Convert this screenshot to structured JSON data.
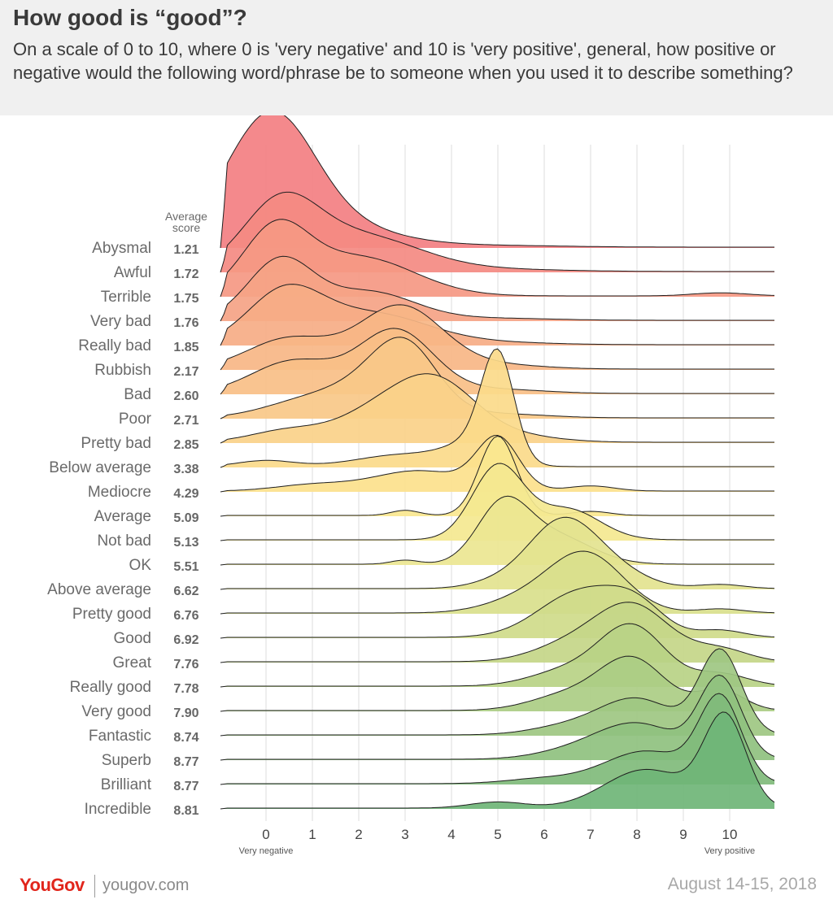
{
  "header": {
    "title": "How good is “good”?",
    "subtitle": "On a scale of 0 to 10, where 0 is 'very negative' and 10 is 'very positive', general, how positive or negative would the following word/phrase be to someone when you used it to describe something?"
  },
  "chart_data": {
    "type": "ridgeline",
    "title": "How good is “good”?",
    "avg_header_line1": "Average",
    "avg_header_line2": "score",
    "x_ticks": [
      "0",
      "1",
      "2",
      "3",
      "4",
      "5",
      "6",
      "7",
      "8",
      "9",
      "10"
    ],
    "x_min_label": "Very negative",
    "x_max_label": "Very positive",
    "xlim": [
      -1,
      11
    ],
    "rows": [
      {
        "label": "Abysmal",
        "avg": "1.21",
        "color": "#f37f82",
        "peaks": [
          [
            0.1,
            0.9,
            1.0
          ],
          [
            0.5,
            1.6,
            0.35
          ],
          [
            5,
            1.5,
            0.015
          ]
        ]
      },
      {
        "label": "Awful",
        "avg": "1.72",
        "color": "#f48a82",
        "peaks": [
          [
            0.3,
            0.8,
            0.62
          ],
          [
            2,
            1.3,
            0.35
          ],
          [
            5,
            1.5,
            0.02
          ]
        ]
      },
      {
        "label": "Terrible",
        "avg": "1.75",
        "color": "#f59883",
        "peaks": [
          [
            0.2,
            0.7,
            0.62
          ],
          [
            2,
            1.2,
            0.38
          ],
          [
            9.8,
            0.6,
            0.03
          ]
        ]
      },
      {
        "label": "Very bad",
        "avg": "1.76",
        "color": "#f5a385",
        "peaks": [
          [
            0.3,
            0.7,
            0.58
          ],
          [
            2.2,
            1.0,
            0.28
          ],
          [
            5,
            1.2,
            0.02
          ]
        ]
      },
      {
        "label": "Really bad",
        "avg": "1.85",
        "color": "#f6ad86",
        "peaks": [
          [
            0.4,
            0.8,
            0.5
          ],
          [
            2.3,
            1.2,
            0.3
          ],
          [
            5,
            1.2,
            0.02
          ]
        ]
      },
      {
        "label": "Rubbish",
        "avg": "2.17",
        "color": "#f7b686",
        "peaks": [
          [
            0.5,
            0.9,
            0.3
          ],
          [
            2.9,
            0.9,
            0.62
          ],
          [
            5,
            1.0,
            0.04
          ]
        ]
      },
      {
        "label": "Bad",
        "avg": "2.60",
        "color": "#f8bf87",
        "peaks": [
          [
            0.6,
            0.9,
            0.32
          ],
          [
            2.8,
            0.8,
            0.62
          ],
          [
            5,
            1.0,
            0.04
          ]
        ]
      },
      {
        "label": "Poor",
        "avg": "2.71",
        "color": "#f9c888",
        "peaks": [
          [
            0.8,
            0.9,
            0.15
          ],
          [
            3,
            0.7,
            0.68
          ],
          [
            2,
            0.8,
            0.2
          ],
          [
            5,
            1.0,
            0.04
          ]
        ]
      },
      {
        "label": "Pretty bad",
        "avg": "2.85",
        "color": "#fad189",
        "peaks": [
          [
            0.5,
            0.8,
            0.12
          ],
          [
            3.6,
            0.9,
            0.62
          ],
          [
            2.2,
            0.8,
            0.2
          ],
          [
            5.5,
            0.9,
            0.05
          ]
        ]
      },
      {
        "label": "Below average",
        "avg": "3.38",
        "color": "#fbda8a",
        "peaks": [
          [
            0,
            0.6,
            0.06
          ],
          [
            3,
            1.0,
            0.12
          ],
          [
            5,
            0.35,
            1.0
          ],
          [
            4.5,
            0.6,
            0.2
          ]
        ]
      },
      {
        "label": "Mediocre",
        "avg": "4.29",
        "color": "#fce18c",
        "peaks": [
          [
            1,
            0.8,
            0.06
          ],
          [
            3.3,
            1.0,
            0.2
          ],
          [
            5,
            0.45,
            0.5
          ],
          [
            7,
            0.5,
            0.05
          ]
        ]
      },
      {
        "label": "Average",
        "avg": "5.09",
        "color": "#fae78f",
        "peaks": [
          [
            5,
            0.4,
            0.78
          ],
          [
            3,
            0.3,
            0.05
          ],
          [
            7,
            0.4,
            0.04
          ]
        ]
      },
      {
        "label": "Not bad",
        "avg": "5.13",
        "color": "#f4e890",
        "peaks": [
          [
            5,
            0.55,
            0.72
          ],
          [
            6.5,
            0.7,
            0.3
          ]
        ]
      },
      {
        "label": "OK",
        "avg": "5.51",
        "color": "#ebe691",
        "peaks": [
          [
            5.1,
            0.55,
            0.55
          ],
          [
            6.2,
            0.8,
            0.28
          ],
          [
            3,
            0.3,
            0.04
          ]
        ]
      },
      {
        "label": "Above average",
        "avg": "6.62",
        "color": "#e3e38f",
        "peaks": [
          [
            6.3,
            0.7,
            0.55
          ],
          [
            7.2,
            0.8,
            0.25
          ],
          [
            9.8,
            0.5,
            0.04
          ],
          [
            5,
            0.6,
            0.06
          ]
        ]
      },
      {
        "label": "Pretty good",
        "avg": "6.76",
        "color": "#d9df8c",
        "peaks": [
          [
            6.9,
            0.8,
            0.58
          ],
          [
            5.5,
            0.8,
            0.12
          ],
          [
            9.8,
            0.5,
            0.04
          ]
        ]
      },
      {
        "label": "Good",
        "avg": "6.92",
        "color": "#cfdb8a",
        "peaks": [
          [
            6.8,
            0.9,
            0.45
          ],
          [
            8,
            0.6,
            0.25
          ],
          [
            9.8,
            0.5,
            0.07
          ]
        ]
      },
      {
        "label": "Great",
        "avg": "7.76",
        "color": "#c4d688",
        "peaks": [
          [
            7.9,
            0.8,
            0.55
          ],
          [
            6.5,
            0.8,
            0.15
          ],
          [
            9.8,
            0.6,
            0.12
          ]
        ]
      },
      {
        "label": "Really good",
        "avg": "7.78",
        "color": "#b8d286",
        "peaks": [
          [
            7.9,
            0.7,
            0.58
          ],
          [
            6.5,
            0.8,
            0.15
          ],
          [
            9.8,
            0.6,
            0.12
          ]
        ]
      },
      {
        "label": "Very good",
        "avg": "7.90",
        "color": "#abcd84",
        "peaks": [
          [
            7.9,
            0.7,
            0.5
          ],
          [
            6.5,
            0.8,
            0.15
          ],
          [
            9.8,
            0.5,
            0.2
          ]
        ]
      },
      {
        "label": "Fantastic",
        "avg": "8.74",
        "color": "#9ec782",
        "peaks": [
          [
            9.8,
            0.45,
            0.82
          ],
          [
            8,
            0.8,
            0.35
          ],
          [
            6.5,
            0.8,
            0.08
          ]
        ]
      },
      {
        "label": "Superb",
        "avg": "8.77",
        "color": "#8fc17f",
        "peaks": [
          [
            9.8,
            0.45,
            0.78
          ],
          [
            8,
            0.9,
            0.35
          ],
          [
            6.5,
            0.8,
            0.06
          ]
        ]
      },
      {
        "label": "Brilliant",
        "avg": "8.77",
        "color": "#80bb7b",
        "peaks": [
          [
            9.8,
            0.45,
            0.82
          ],
          [
            8.2,
            0.9,
            0.32
          ],
          [
            6,
            0.8,
            0.05
          ]
        ]
      },
      {
        "label": "Incredible",
        "avg": "8.81",
        "color": "#6fb577",
        "peaks": [
          [
            9.9,
            0.45,
            0.88
          ],
          [
            8.2,
            0.9,
            0.38
          ],
          [
            5,
            0.6,
            0.06
          ]
        ]
      }
    ]
  },
  "footer": {
    "brand_you": "You",
    "brand_gov": "Gov",
    "site": "yougov.com",
    "date": "August 14-15, 2018"
  }
}
